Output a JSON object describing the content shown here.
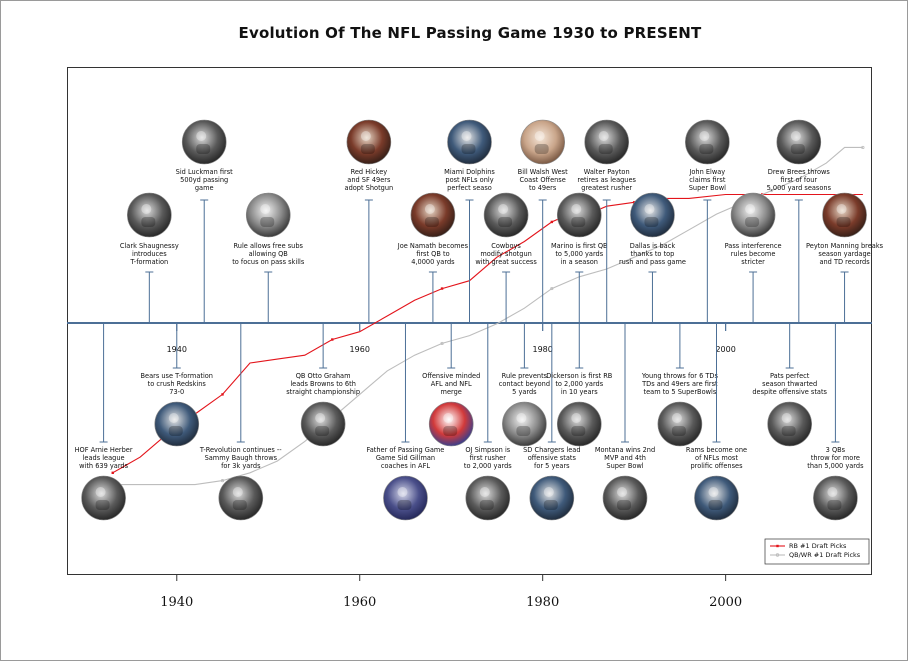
{
  "title": "Evolution Of The NFL Passing Game 1930 to PRESENT",
  "chart_data": {
    "type": "line",
    "title": "Evolution Of The NFL Passing Game 1930 to PRESENT",
    "xlabel": "",
    "ylabel": "",
    "xlim": [
      1928,
      2016
    ],
    "x_ticks": [
      1940,
      1960,
      1980,
      2000
    ],
    "inner_ticks": [
      1940,
      1960,
      1980,
      2000
    ],
    "legend_position": "bottom-right",
    "series": [
      {
        "name": "RB #1 Draft Picks",
        "color": "#e3141b",
        "marker": "filled-square",
        "x": [
          1933,
          1936,
          1939,
          1942,
          1945,
          1948,
          1951,
          1954,
          1957,
          1960,
          1963,
          1966,
          1969,
          1972,
          1975,
          1978,
          1981,
          1983,
          1985,
          1987,
          1990,
          1993,
          1996,
          2000,
          2004,
          2008,
          2012,
          2015
        ],
        "y": [
          0.1,
          0.14,
          0.2,
          0.25,
          0.3,
          0.38,
          0.39,
          0.4,
          0.44,
          0.46,
          0.5,
          0.54,
          0.57,
          0.59,
          0.65,
          0.69,
          0.74,
          0.76,
          0.76,
          0.78,
          0.79,
          0.8,
          0.8,
          0.81,
          0.81,
          0.81,
          0.81,
          0.81
        ]
      },
      {
        "name": "QB/WR #1 Draft Picks",
        "color": "#bdbdbd",
        "marker": "open-triangle",
        "x": [
          1933,
          1936,
          1939,
          1942,
          1945,
          1948,
          1951,
          1954,
          1957,
          1960,
          1963,
          1966,
          1969,
          1972,
          1975,
          1978,
          1981,
          1984,
          1987,
          1990,
          1993,
          1996,
          1999,
          2002,
          2005,
          2008,
          2011,
          2013,
          2015
        ],
        "y": [
          0.07,
          0.07,
          0.07,
          0.07,
          0.08,
          0.1,
          0.13,
          0.18,
          0.24,
          0.3,
          0.36,
          0.4,
          0.43,
          0.45,
          0.48,
          0.52,
          0.57,
          0.6,
          0.62,
          0.65,
          0.68,
          0.72,
          0.76,
          0.79,
          0.82,
          0.85,
          0.89,
          0.93,
          0.93
        ]
      }
    ],
    "events_top": [
      {
        "year": 1937,
        "lines": [
          "Clark Shaugnessy",
          "introduces",
          "T-formation"
        ],
        "icon": "player-photo-icon"
      },
      {
        "year": 1943,
        "lines": [
          "Sid Luckman first",
          "500yd passing",
          "game"
        ],
        "icon": "player-photo-icon"
      },
      {
        "year": 1950,
        "lines": [
          "Rule allows free subs",
          "allowing QB",
          "to focus on pass skills"
        ],
        "icon": "referee-photo-icon"
      },
      {
        "year": 1961,
        "lines": [
          "Red Hickey",
          "and SF 49ers",
          "adopt Shotgun"
        ],
        "icon": "game-action-icon"
      },
      {
        "year": 1968,
        "lines": [
          "Joe Namath becomes",
          "first QB to",
          "4,0000 yards"
        ],
        "icon": "game-action-icon"
      },
      {
        "year": 1972,
        "lines": [
          "Miami Dolphins",
          "post NFLs only",
          "perfect seaso"
        ],
        "icon": "team-photo-icon"
      },
      {
        "year": 1976,
        "lines": [
          "Cowboys",
          "modify shotgun",
          "with great success"
        ],
        "icon": "player-photo-icon"
      },
      {
        "year": 1980,
        "lines": [
          "Bill Walsh West",
          "Coast Offense",
          "to 49ers"
        ],
        "icon": "coach-photo-icon"
      },
      {
        "year": 1984,
        "lines": [
          "Marino is first QB",
          "to 5,000 yards",
          "in a season"
        ],
        "icon": "player-photo-icon"
      },
      {
        "year": 1987,
        "lines": [
          "Walter Payton",
          "retires as leagues",
          "greatest rusher"
        ],
        "icon": "player-photo-icon"
      },
      {
        "year": 1992,
        "lines": [
          "Dallas is back",
          "thanks to top",
          "rush and pass game"
        ],
        "icon": "team-photo-icon"
      },
      {
        "year": 1998,
        "lines": [
          "John Elway",
          "claims first",
          "Super Bowl"
        ],
        "icon": "player-photo-icon"
      },
      {
        "year": 2003,
        "lines": [
          "Pass interference",
          "rules become",
          "stricter"
        ],
        "icon": "referee-photo-icon"
      },
      {
        "year": 2008,
        "lines": [
          "Drew Brees throws",
          "first of four",
          "5,000 yard seasons"
        ],
        "icon": "player-photo-icon"
      },
      {
        "year": 2013,
        "lines": [
          "Peyton Manning breaks",
          "season yardage",
          "and TD records"
        ],
        "icon": "game-action-icon"
      }
    ],
    "events_bottom": [
      {
        "year": 1932,
        "lines": [
          "HOF Arnie Herber",
          "leads league",
          "with 639 yards"
        ],
        "icon": "player-photo-icon"
      },
      {
        "year": 1940,
        "lines": [
          "Bears use T-formation",
          "to crush Redskins",
          "73-0"
        ],
        "icon": "team-photo-icon"
      },
      {
        "year": 1947,
        "lines": [
          "T-Revolution continues --",
          "Sammy Baugh throws",
          "for 3k yards"
        ],
        "icon": "player-photo-icon"
      },
      {
        "year": 1956,
        "lines": [
          "QB Otto Graham",
          "leads Browns to 6th",
          "straight championship"
        ],
        "icon": "player-photo-icon"
      },
      {
        "year": 1965,
        "lines": [
          "Father of Passing Game",
          "Game Sid Gillman",
          "coaches in AFL"
        ],
        "icon": "book-cover-icon"
      },
      {
        "year": 1970,
        "lines": [
          "Offensive minded",
          "AFL and NFL",
          "merge"
        ],
        "icon": "league-logo-icon"
      },
      {
        "year": 1974,
        "lines": [
          "OJ Simpson is",
          "first rusher",
          "to 2,000 yards"
        ],
        "icon": "player-photo-icon"
      },
      {
        "year": 1978,
        "lines": [
          "Rule prevents",
          "contact beyond",
          "5 yards"
        ],
        "icon": "referee-photo-icon"
      },
      {
        "year": 1981,
        "lines": [
          "SD Chargers lead",
          "offensive stats",
          "for 5 years"
        ],
        "icon": "team-photo-icon"
      },
      {
        "year": 1984,
        "lines": [
          "Dickerson is first RB",
          "to 2,000 yards",
          "in 10 years"
        ],
        "icon": "player-photo-icon"
      },
      {
        "year": 1989,
        "lines": [
          "Montana wins 2nd",
          "MVP and 4th",
          "Super Bowl"
        ],
        "icon": "player-photo-icon"
      },
      {
        "year": 1995,
        "lines": [
          "Young throws for 6 TDs",
          "TDs and 49ers are first",
          "team to 5 SuperBowls"
        ],
        "icon": "player-photo-icon"
      },
      {
        "year": 1999,
        "lines": [
          "Rams become one",
          "of NFLs most",
          "prolific offenses"
        ],
        "icon": "team-photo-icon"
      },
      {
        "year": 2007,
        "lines": [
          "Pats perfect",
          "season thwarted",
          "despite offensive stats"
        ],
        "icon": "player-photo-icon"
      },
      {
        "year": 2012,
        "lines": [
          "3 QBs",
          "throw for more",
          "than 5,000 yards"
        ],
        "icon": "player-photo-icon"
      }
    ]
  },
  "colors": {
    "timeline": "#4c6f96",
    "rb_series": "#e3141b",
    "qb_series": "#bdbdbd",
    "frame": "#333333"
  }
}
